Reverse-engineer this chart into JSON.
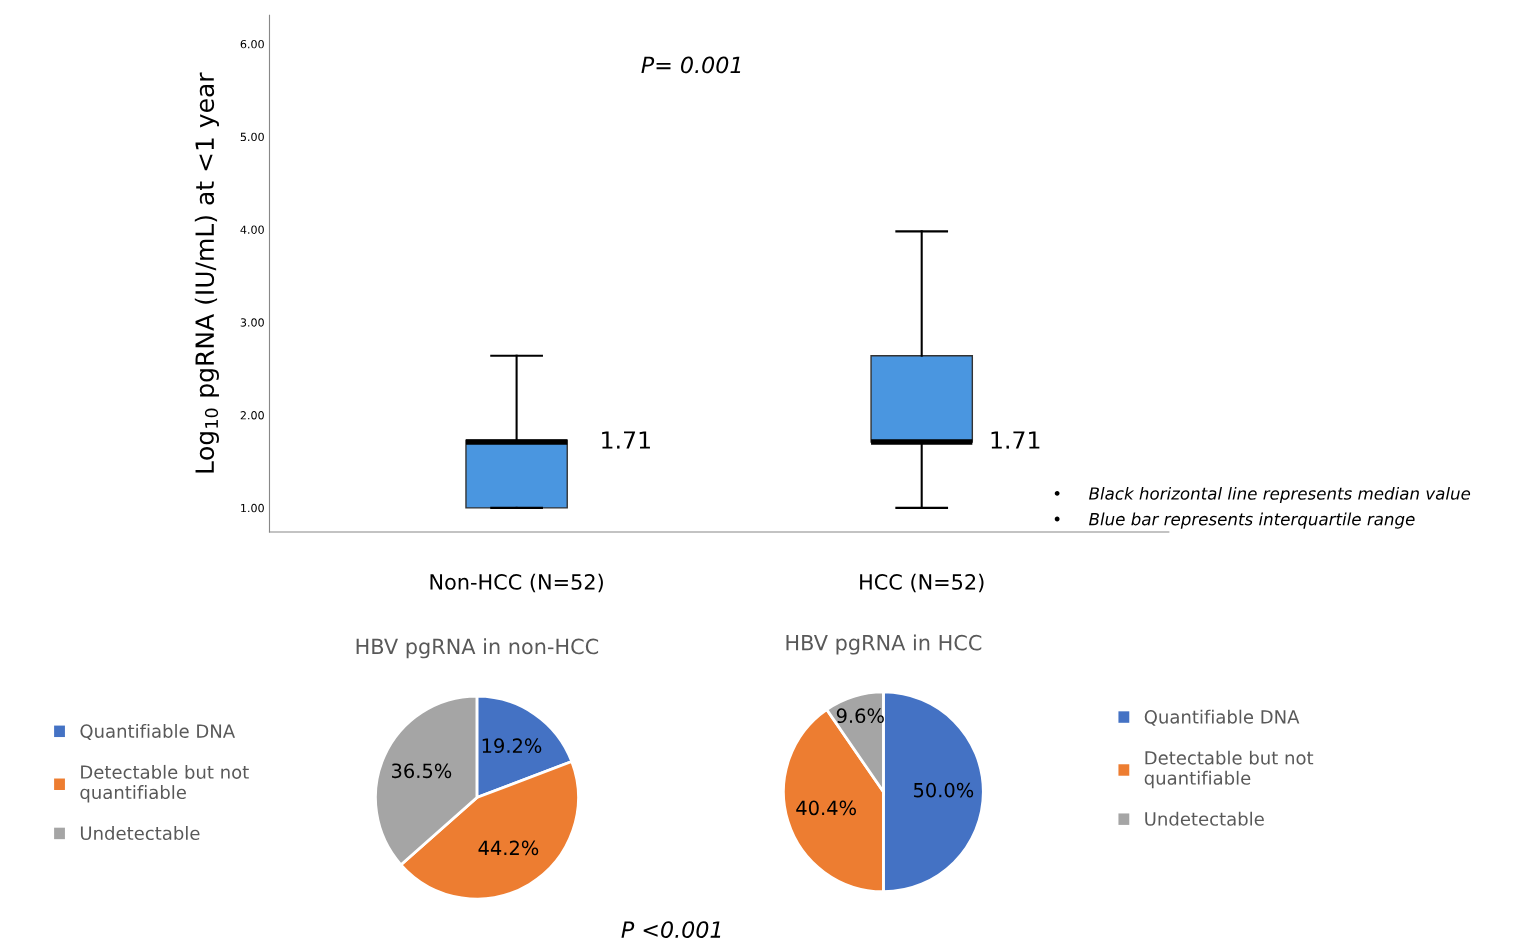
{
  "chart_data": [
    {
      "type": "box",
      "categories": [
        "Non-HCC (N=52)",
        "HCC (N=52)"
      ],
      "ylabel": "Log$_{10}$ pgRNA (IU/mL) at <1 year",
      "color": "#4a96e0",
      "boxes": [
        {
          "low": 1.0,
          "q1": 1.0,
          "median": 1.71,
          "q3": 1.73,
          "high": 2.64
        },
        {
          "low": 1.0,
          "q1": 1.71,
          "median": 1.71,
          "q3": 2.64,
          "high": 3.98
        }
      ],
      "ylim": [
        0.74,
        6.31
      ],
      "yticks": [
        {
          "value": 1,
          "label": "1.00"
        },
        {
          "value": 2,
          "label": "2.00"
        },
        {
          "value": 3,
          "label": "3.00"
        },
        {
          "value": 4,
          "label": "4.00"
        },
        {
          "value": 5,
          "label": "5.00"
        },
        {
          "value": 6,
          "label": "6.00"
        }
      ],
      "grid": false,
      "annotations": [
        "1.71",
        "1.71",
        "P= 0.001",
        "•     Black horizontal line represents median value",
        "•     Blue bar represents interquartile range"
      ]
    },
    {
      "type": "pie",
      "title": "HBV pgRNA in non-HCC",
      "categories": [
        "Quantifiable DNA",
        "Detectable but not\nquantifiable",
        "Undetectable"
      ],
      "values": [
        19.2,
        44.2,
        36.5
      ],
      "colors": [
        "#4472c4",
        "#ed7d31",
        "#a5a5a5"
      ],
      "value_labels": [
        "19.2%",
        "44.2%",
        "36.5%"
      ],
      "legend": "left",
      "annotations": [
        "P <0.001"
      ]
    },
    {
      "type": "pie",
      "title": "HBV pgRNA in HCC",
      "categories": [
        "Quantifiable DNA",
        "Detectable but not\nquantifiable",
        "Undetectable"
      ],
      "values": [
        50.0,
        40.4,
        9.6
      ],
      "colors": [
        "#4472c4",
        "#ed7d31",
        "#a5a5a5"
      ],
      "value_labels": [
        "50.0%",
        "40.4%",
        "9.6%"
      ],
      "legend": "right"
    }
  ]
}
